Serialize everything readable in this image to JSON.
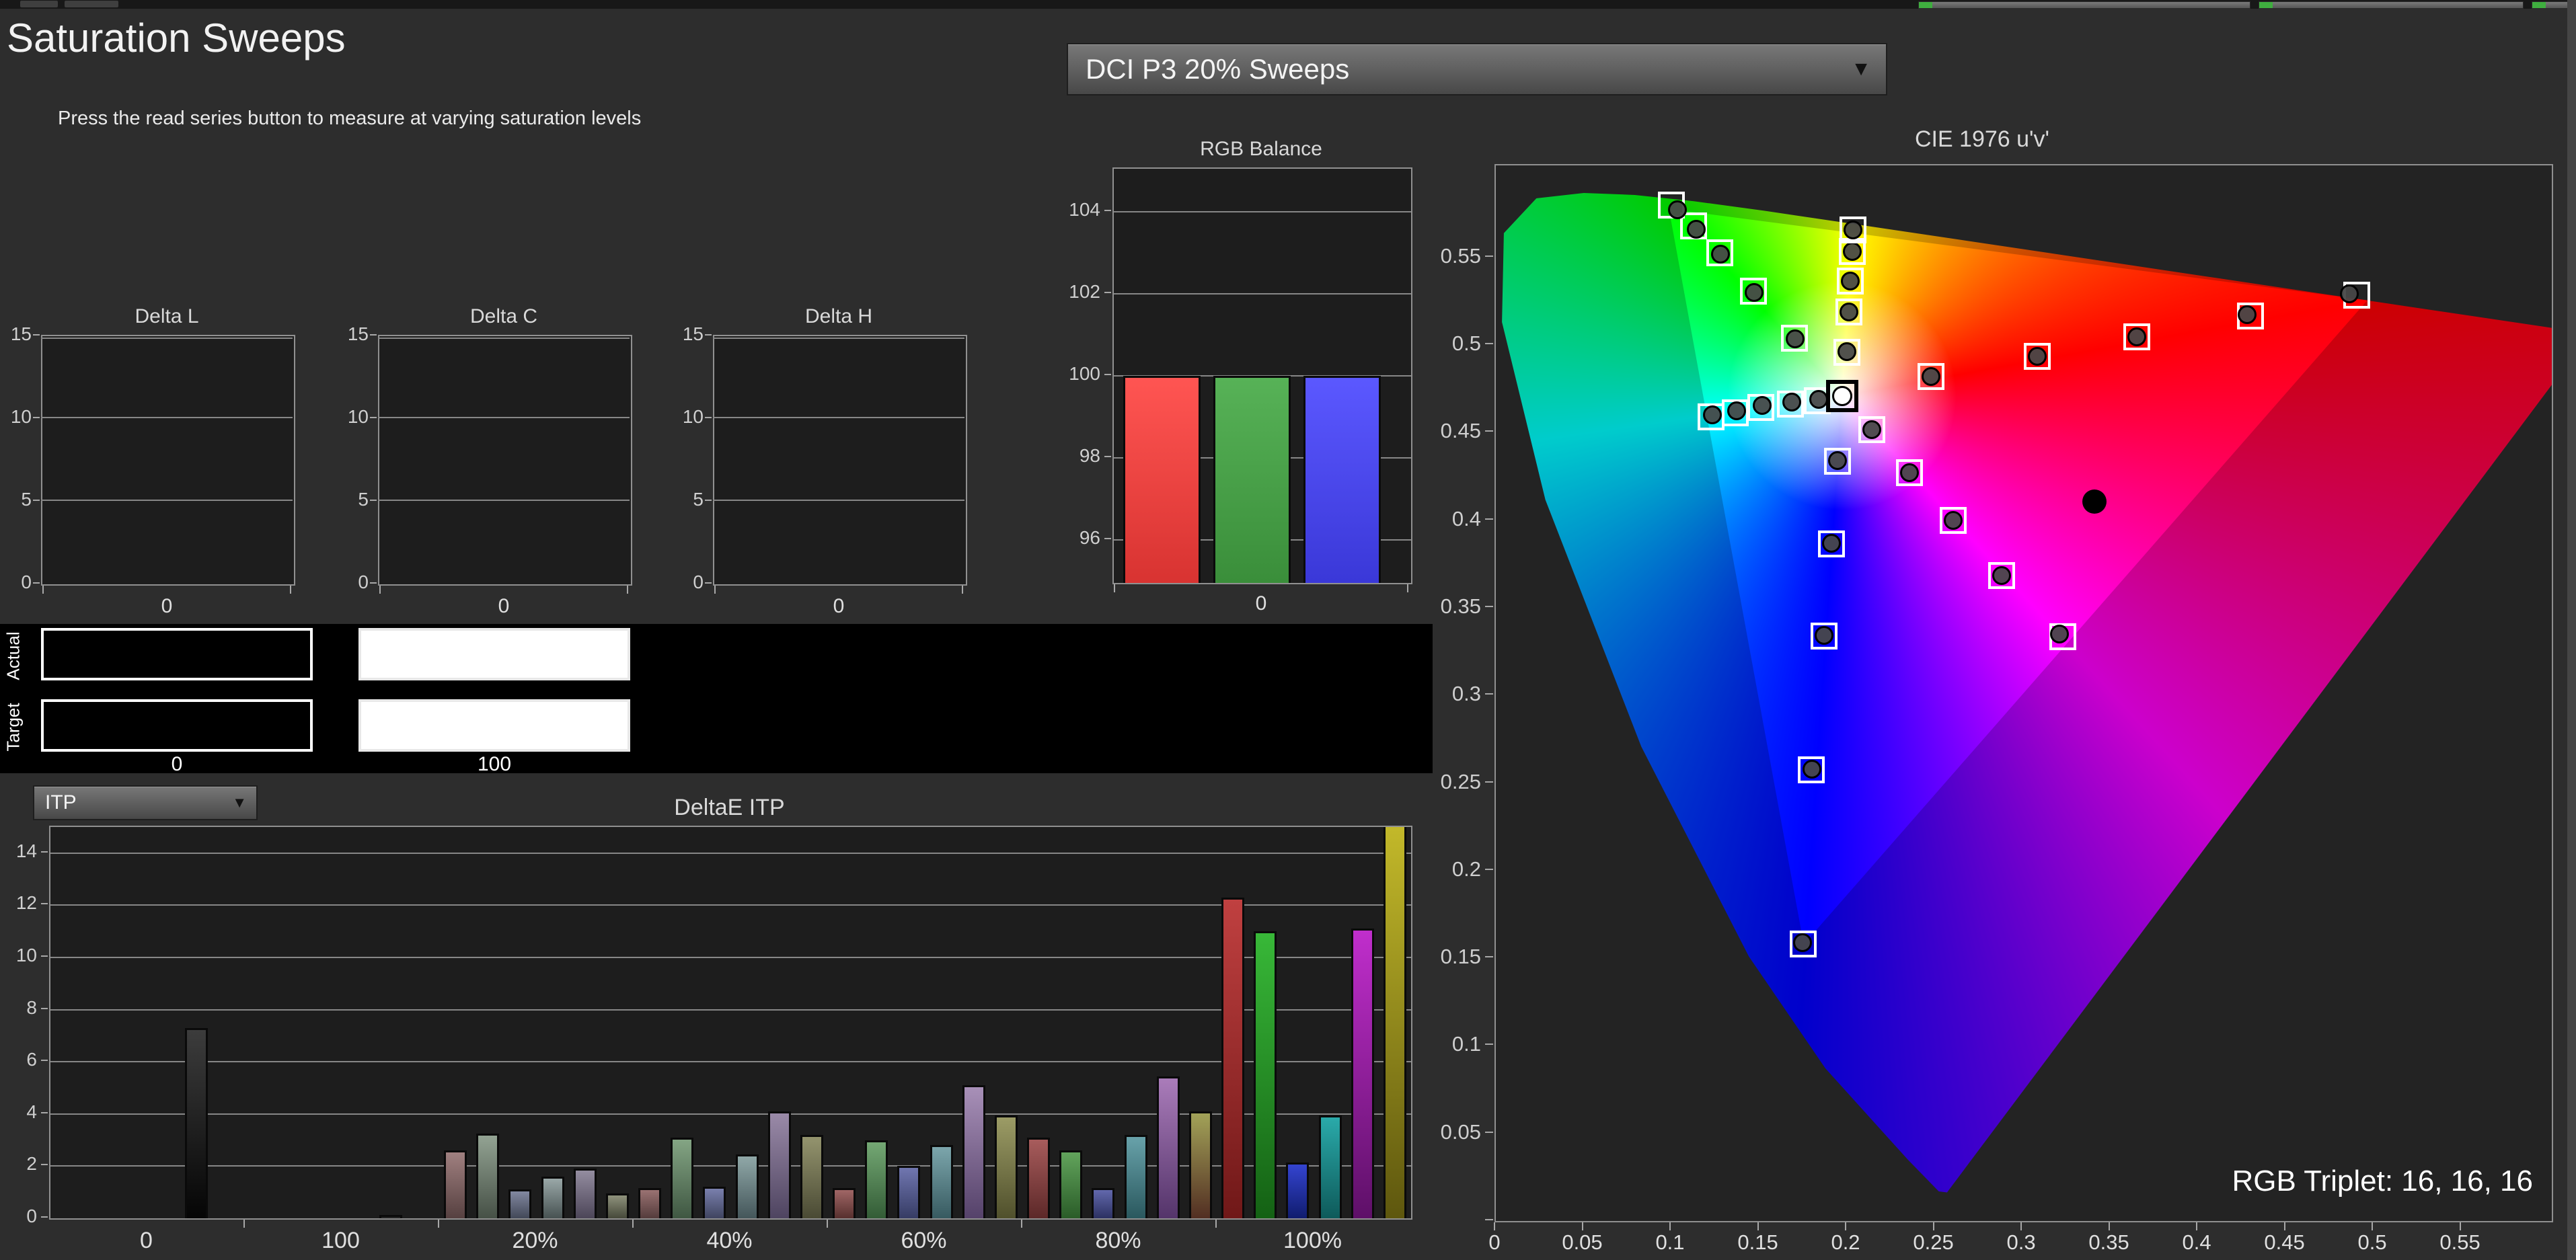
{
  "header": {
    "title": "Saturation Sweeps",
    "subtitle": "Press the read series button to measure at varying saturation levels"
  },
  "topbar": {
    "meters": 3
  },
  "preset_dropdown": {
    "value": "DCI P3 20% Sweeps"
  },
  "deltae_dropdown": {
    "value": "ITP"
  },
  "swatch_panel": {
    "rows": [
      {
        "label": "Actual"
      },
      {
        "label": "Target"
      }
    ],
    "columns": [
      {
        "label": "0",
        "fill": "#000000"
      },
      {
        "label": "100",
        "fill": "#ffffff"
      }
    ]
  },
  "cie_labels": {
    "rgb_triplet": "RGB Triplet: 16, 16, 16"
  },
  "colors": {
    "page_bg": "#2d2d2d",
    "plot_bg": "#1d1d1d",
    "grid": "#878787",
    "border": "#909090",
    "accent_red": "#ff5050",
    "accent_green": "#55b055",
    "accent_blue": "#5555ff"
  },
  "chart_data": {
    "delta_charts": [
      {
        "type": "bar",
        "title": "Delta L",
        "yticks": [
          0,
          5,
          10,
          15
        ],
        "ylim": [
          0,
          15
        ],
        "xlabel": "0",
        "values": []
      },
      {
        "type": "bar",
        "title": "Delta C",
        "yticks": [
          0,
          5,
          10,
          15
        ],
        "ylim": [
          0,
          15
        ],
        "xlabel": "0",
        "values": []
      },
      {
        "type": "bar",
        "title": "Delta H",
        "yticks": [
          0,
          5,
          10,
          15
        ],
        "ylim": [
          0,
          15
        ],
        "xlabel": "0",
        "values": []
      }
    ],
    "rgb_balance": {
      "type": "bar",
      "title": "RGB Balance",
      "yticks": [
        96,
        98,
        100,
        102,
        104
      ],
      "ylim": [
        94.95,
        105.05
      ],
      "xlabel": "0",
      "categories": [
        "Red",
        "Green",
        "Blue"
      ],
      "values": [
        100,
        100,
        100
      ],
      "bar_colors": [
        [
          "#ff5552",
          "#d83331"
        ],
        [
          "#57b257",
          "#3a8e3a"
        ],
        [
          "#5b58ff",
          "#3a38d8"
        ]
      ]
    },
    "deltae_itp": {
      "type": "bar",
      "title": "DeltaE ITP",
      "yticks": [
        0,
        2,
        4,
        6,
        8,
        10,
        12,
        14
      ],
      "ylim": [
        0,
        15
      ],
      "categories": [
        "0",
        "100",
        "20%",
        "40%",
        "60%",
        "80%",
        "100%"
      ],
      "series_order": [
        "Red",
        "Green",
        "Blue",
        "Cyan",
        "Magenta",
        "Yellow"
      ],
      "groups": [
        {
          "label": "0",
          "values": [
            null,
            null,
            null,
            null,
            7.3,
            null
          ]
        },
        {
          "label": "100",
          "values": [
            null,
            null,
            null,
            null,
            0.12,
            null
          ]
        },
        {
          "label": "20%",
          "values": [
            2.6,
            3.25,
            1.1,
            1.6,
            1.9,
            0.95
          ]
        },
        {
          "label": "40%",
          "values": [
            1.15,
            3.1,
            1.2,
            2.45,
            4.1,
            3.2
          ]
        },
        {
          "label": "60%",
          "values": [
            1.15,
            3.0,
            2.0,
            2.8,
            5.1,
            3.95
          ]
        },
        {
          "label": "80%",
          "values": [
            3.1,
            2.6,
            1.15,
            3.2,
            5.45,
            4.1
          ]
        },
        {
          "label": "100%",
          "values": [
            12.3,
            11.0,
            2.15,
            3.95,
            11.1,
            15.3
          ]
        }
      ],
      "group_colors": [
        [
          null,
          null,
          null,
          null,
          [
            "#3c3c3c",
            "#050505"
          ],
          null
        ],
        [
          null,
          null,
          null,
          null,
          [
            "#3c3c3c",
            "#050505"
          ],
          null
        ],
        [
          [
            "#a08080",
            "#564040"
          ],
          [
            "#93a393",
            "#465046"
          ],
          [
            "#8288a0",
            "#424858"
          ],
          [
            "#9aa8a8",
            "#475252"
          ],
          [
            "#948da0",
            "#4c4658"
          ],
          [
            "#8f927c",
            "#46493a"
          ]
        ],
        [
          [
            "#9a7272",
            "#543c3c"
          ],
          [
            "#84a584",
            "#3f5742"
          ],
          [
            "#7a80ad",
            "#3f4460"
          ],
          [
            "#90a8a8",
            "#44565a"
          ],
          [
            "#9a8aa8",
            "#4e4460"
          ],
          [
            "#94946e",
            "#4a4a34"
          ]
        ],
        [
          [
            "#a06666",
            "#57302e"
          ],
          [
            "#74a874",
            "#335c36"
          ],
          [
            "#7076b0",
            "#363c64"
          ],
          [
            "#7ca6ac",
            "#375a60"
          ],
          [
            "#a890b8",
            "#55426a"
          ],
          [
            "#9c9c66",
            "#50502c"
          ]
        ],
        [
          [
            "#a85c5c",
            "#5c2828"
          ],
          [
            "#62a45c",
            "#2a5c28"
          ],
          [
            "#6268ac",
            "#2c3162"
          ],
          [
            "#68a2aa",
            "#2a585e"
          ],
          [
            "#aa7cba",
            "#54346a"
          ],
          [
            "#a2a258",
            "#522e22"
          ]
        ],
        [
          [
            "#c04040",
            "#701818"
          ],
          [
            "#38b838",
            "#146114"
          ],
          [
            "#3444d0",
            "#101c6e"
          ],
          [
            "#2aaaaa",
            "#0e5a5a"
          ],
          [
            "#c02ecc",
            "#5e1068"
          ],
          [
            "#c4ba2a",
            "#5e570e"
          ]
        ]
      ]
    },
    "cie_1976": {
      "type": "scatter",
      "title": "CIE 1976 u'v'",
      "xlabel": "u'",
      "ylabel": "v'",
      "xlim": [
        0,
        0.6015
      ],
      "ylim": [
        0,
        0.6025
      ],
      "xticks": [
        "0",
        "0.05",
        "0.1",
        "0.15",
        "0.2",
        "0.25",
        "0.3",
        "0.35",
        "0.4",
        "0.45",
        "0.5",
        "0.55"
      ],
      "yticks": [
        "0",
        "0.05",
        "0.1",
        "0.15",
        "0.2",
        "0.25",
        "0.3",
        "0.35",
        "0.4",
        "0.45",
        "0.5",
        "0.55"
      ],
      "white_point": {
        "u": 0.1972,
        "v": 0.471
      },
      "hue_stops": [
        {
          "deg": 0,
          "color": "#ffff00"
        },
        {
          "deg": 76,
          "color": "#ff0000"
        },
        {
          "deg": 134,
          "color": "#ff00ff"
        },
        {
          "deg": 180,
          "color": "#0000ff"
        },
        {
          "deg": 258,
          "color": "#00ffff"
        },
        {
          "deg": 314,
          "color": "#00ff00"
        },
        {
          "deg": 360,
          "color": "#ffff00"
        }
      ],
      "conic_from_deg": 3.75,
      "spectral_locus": [
        [
          0.6234,
          0.5065
        ],
        [
          0.5202,
          0.5219
        ],
        [
          0.4035,
          0.5393
        ],
        [
          0.2623,
          0.5604
        ],
        [
          0.1531,
          0.5766
        ],
        [
          0.1127,
          0.5821
        ],
        [
          0.0792,
          0.5856
        ],
        [
          0.0501,
          0.5868
        ],
        [
          0.0231,
          0.5837
        ],
        [
          0.0046,
          0.5638
        ],
        [
          0.0035,
          0.5131
        ],
        [
          0.0282,
          0.4117
        ],
        [
          0.0828,
          0.2708
        ],
        [
          0.1441,
          0.151
        ],
        [
          0.1877,
          0.0871
        ],
        [
          0.2347,
          0.035
        ],
        [
          0.2523,
          0.0169
        ],
        [
          0.257,
          0.0163
        ]
      ],
      "p3_triangle": [
        [
          0.4964,
          0.5255
        ],
        [
          0.0986,
          0.5777
        ],
        [
          0.1754,
          0.1579
        ]
      ],
      "sweeps": {
        "green": [
          {
            "su": 0.17,
            "sv": 0.504,
            "du": 0.1705,
            "dv": 0.5035
          },
          {
            "su": 0.1467,
            "sv": 0.5307,
            "du": 0.147,
            "dv": 0.53
          },
          {
            "su": 0.1276,
            "sv": 0.5525,
            "du": 0.128,
            "dv": 0.552
          },
          {
            "su": 0.1128,
            "sv": 0.568,
            "du": 0.114,
            "dv": 0.566
          },
          {
            "su": 0.1,
            "sv": 0.58,
            "du": 0.1035,
            "dv": 0.577
          }
        ],
        "yellow": [
          {
            "su": 0.2,
            "sv": 0.496,
            "du": 0.2,
            "dv": 0.4961
          },
          {
            "su": 0.2011,
            "sv": 0.5188,
            "du": 0.2011,
            "dv": 0.5188
          },
          {
            "su": 0.2019,
            "sv": 0.5364,
            "du": 0.2019,
            "dv": 0.5364
          },
          {
            "su": 0.203,
            "sv": 0.5533,
            "du": 0.203,
            "dv": 0.5533
          },
          {
            "su": 0.2034,
            "sv": 0.5655,
            "du": 0.2034,
            "dv": 0.5655
          }
        ],
        "red": [
          {
            "su": 0.2479,
            "sv": 0.482,
            "du": 0.2479,
            "dv": 0.482
          },
          {
            "su": 0.3084,
            "sv": 0.4935,
            "du": 0.3084,
            "dv": 0.4935
          },
          {
            "su": 0.3652,
            "sv": 0.5046,
            "du": 0.3652,
            "dv": 0.5046
          },
          {
            "su": 0.43,
            "sv": 0.5165,
            "du": 0.428,
            "dv": 0.5172
          },
          {
            "su": 0.4905,
            "sv": 0.5285,
            "du": 0.4862,
            "dv": 0.5293
          }
        ],
        "magenta": [
          {
            "su": 0.2142,
            "sv": 0.4516,
            "du": 0.2142,
            "dv": 0.4516
          },
          {
            "su": 0.2356,
            "sv": 0.4271,
            "du": 0.2356,
            "dv": 0.4271
          },
          {
            "su": 0.2605,
            "sv": 0.3999,
            "du": 0.2605,
            "dv": 0.3999
          },
          {
            "su": 0.2881,
            "sv": 0.3684,
            "du": 0.2881,
            "dv": 0.3684
          },
          {
            "su": 0.323,
            "sv": 0.3335,
            "du": 0.321,
            "dv": 0.335
          }
        ],
        "cyan": [
          {
            "su": 0.183,
            "sv": 0.468,
            "du": 0.1839,
            "dv": 0.4689
          },
          {
            "su": 0.1678,
            "sv": 0.4662,
            "du": 0.1686,
            "dv": 0.4674
          },
          {
            "su": 0.151,
            "sv": 0.4642,
            "du": 0.1517,
            "dv": 0.4655
          },
          {
            "su": 0.1363,
            "sv": 0.4612,
            "du": 0.1371,
            "dv": 0.4624
          },
          {
            "su": 0.1225,
            "sv": 0.4588,
            "du": 0.1233,
            "dv": 0.4601
          }
        ],
        "blue": [
          {
            "su": 0.1946,
            "sv": 0.4336,
            "du": 0.1946,
            "dv": 0.434
          },
          {
            "su": 0.1912,
            "sv": 0.3864,
            "du": 0.1912,
            "dv": 0.3868
          },
          {
            "su": 0.1868,
            "sv": 0.3338,
            "du": 0.187,
            "dv": 0.3342
          },
          {
            "su": 0.1798,
            "sv": 0.2576,
            "du": 0.1802,
            "dv": 0.258
          },
          {
            "su": 0.1752,
            "sv": 0.1582,
            "du": 0.1748,
            "dv": 0.159
          }
        ]
      },
      "lone_dot": {
        "u": 0.341,
        "v": 0.4106
      }
    }
  }
}
